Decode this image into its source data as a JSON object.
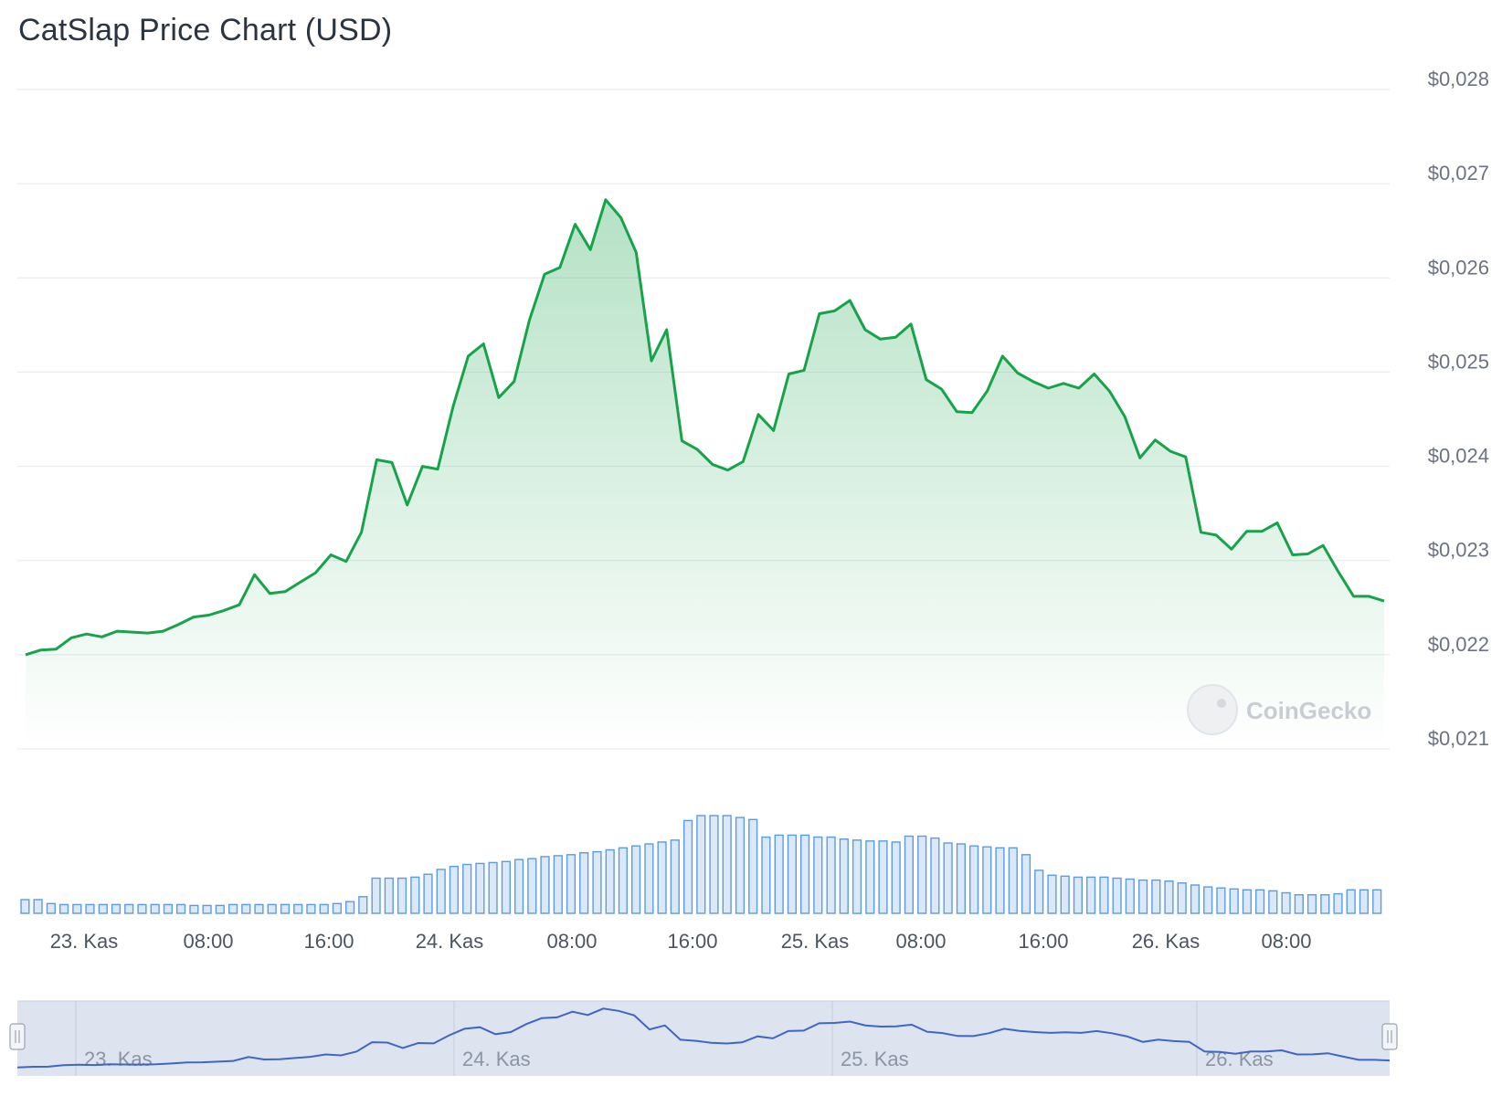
{
  "title": "CatSlap Price Chart (USD)",
  "watermark": "CoinGecko",
  "colors": {
    "price_line": "#16a34a",
    "price_fill": "#16a34a",
    "volume_bar": "#5b9be6",
    "navigator_bg": "#dde4f0",
    "navigator_line": "#3f66c4",
    "grid": "#e9ecef"
  },
  "chart_data": [
    {
      "type": "area",
      "series": [
        {
          "values": [
            0.022,
            0.02205,
            0.02206,
            0.02218,
            0.02222,
            0.02219,
            0.02225,
            0.02224,
            0.02223,
            0.02225,
            0.02232,
            0.0224,
            0.02242,
            0.02247,
            0.02253,
            0.02285,
            0.02265,
            0.02267,
            0.02277,
            0.02287,
            0.02306,
            0.02299,
            0.0233,
            0.02407,
            0.02404,
            0.02359,
            0.024,
            0.02397,
            0.02463,
            0.02517,
            0.0253,
            0.02473,
            0.0249,
            0.02555,
            0.02604,
            0.02611,
            0.02657,
            0.0263,
            0.02683,
            0.02664,
            0.02627,
            0.02512,
            0.02545,
            0.02427,
            0.02418,
            0.02402,
            0.02396,
            0.02405,
            0.02455,
            0.02438,
            0.02498,
            0.02502,
            0.02562,
            0.02565,
            0.02576,
            0.02545,
            0.02535,
            0.02537,
            0.02551,
            0.02492,
            0.02482,
            0.02458,
            0.02457,
            0.0248,
            0.02517,
            0.02499,
            0.0249,
            0.02483,
            0.02488,
            0.02483,
            0.02498,
            0.0248,
            0.02453,
            0.02409,
            0.02428,
            0.02416,
            0.0241,
            0.0233,
            0.02327,
            0.02312,
            0.02331,
            0.02331,
            0.0234,
            0.02306,
            0.02307,
            0.02316,
            0.02288,
            0.02262,
            0.02262,
            0.02257
          ]
        }
      ],
      "y_ticks": [
        "$0,028",
        "$0,027",
        "$0,026",
        "$0,025",
        "$0,024",
        "$0,023",
        "$0,022",
        "$0,021"
      ],
      "ylim": [
        0.021,
        0.028
      ],
      "x_ticks": [
        "23. Kas",
        "08:00",
        "16:00",
        "24. Kas",
        "08:00",
        "16:00",
        "25. Kas",
        "08:00",
        "16:00",
        "26. Kas",
        "08:00"
      ],
      "grid": true
    },
    {
      "type": "bar",
      "series": [
        {
          "values": [
            14,
            14,
            10,
            9,
            9,
            9,
            9,
            9,
            9,
            9,
            9,
            9,
            9,
            8,
            8,
            8,
            9,
            9,
            9,
            9,
            9,
            9,
            9,
            9,
            10,
            12,
            17,
            36,
            36,
            36,
            37,
            40,
            45,
            48,
            50,
            51,
            52,
            53,
            55,
            56,
            58,
            59,
            60,
            62,
            63,
            65,
            67,
            69,
            71,
            73,
            75,
            95,
            100,
            100,
            100,
            98,
            96,
            78,
            80,
            80,
            80,
            78,
            78,
            76,
            75,
            74,
            74,
            73,
            79,
            79,
            77,
            72,
            71,
            69,
            68,
            67,
            67,
            60,
            44,
            39,
            38,
            37,
            37,
            37,
            36,
            35,
            34,
            34,
            33,
            31,
            29,
            27,
            26,
            25,
            24,
            24,
            23,
            21,
            19,
            19,
            19,
            20,
            24,
            24,
            24
          ]
        }
      ]
    },
    {
      "type": "line",
      "x_ticks": [
        "23. Kas",
        "24. Kas",
        "25. Kas",
        "26. Kas"
      ]
    }
  ]
}
